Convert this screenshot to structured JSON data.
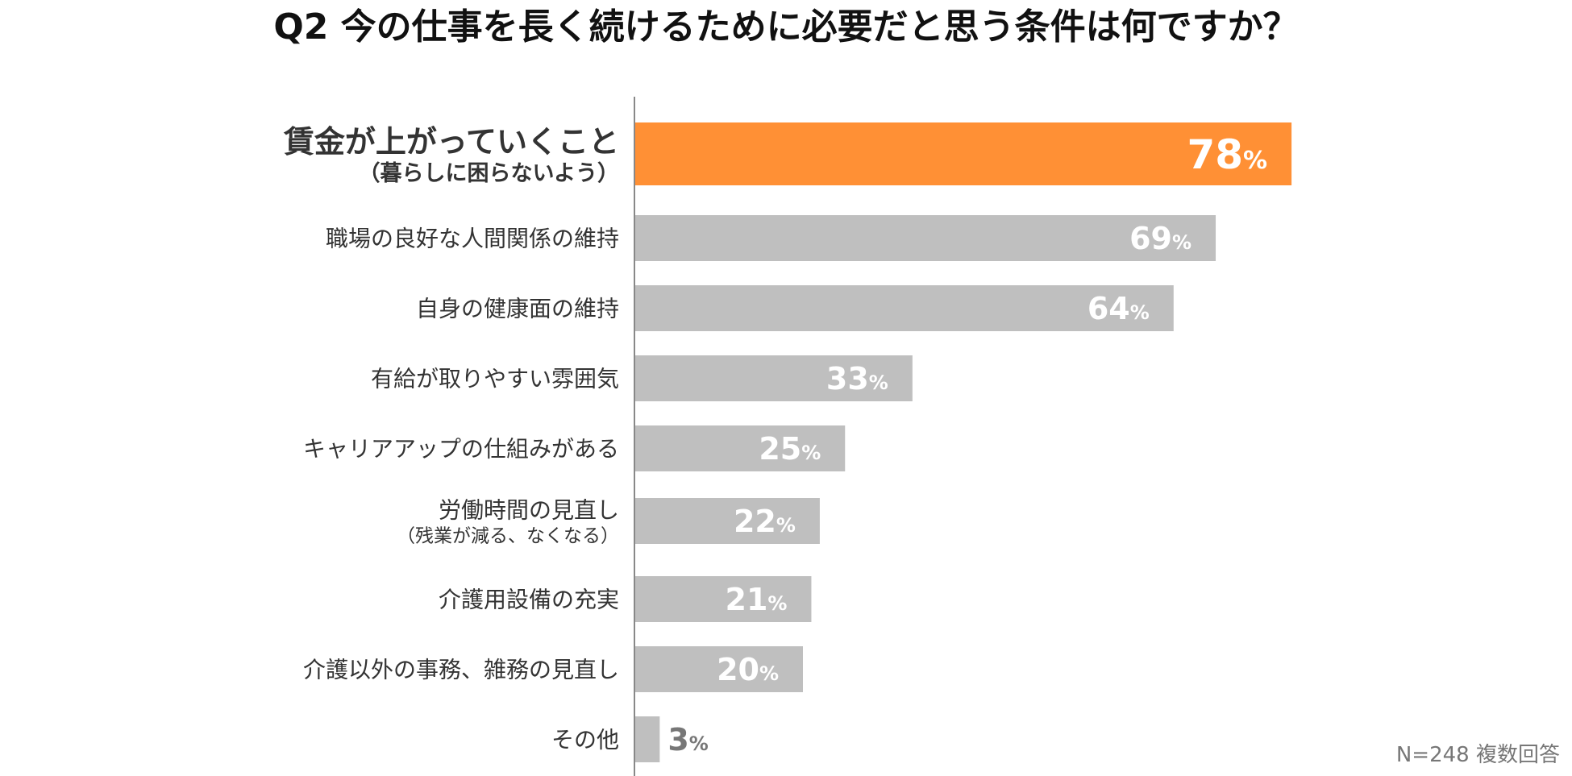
{
  "chart_data": {
    "type": "bar",
    "orientation": "horizontal",
    "title": "Q2  今の仕事を長く続けるために必要だと思う条件は何ですか？",
    "categories": [
      {
        "label": "賃金が上がっていくこと",
        "sub": "（暮らしに困らないよう）"
      },
      {
        "label": "職場の良好な人間関係の維持",
        "sub": null
      },
      {
        "label": "自身の健康面の維持",
        "sub": null
      },
      {
        "label": "有給が取りやすい雰囲気",
        "sub": null
      },
      {
        "label": "キャリアアップの仕組みがある",
        "sub": null
      },
      {
        "label": "労働時間の見直し",
        "sub": "（残業が減る、なくなる）"
      },
      {
        "label": "介護用設備の充実",
        "sub": null
      },
      {
        "label": "介護以外の事務、雑務の見直し",
        "sub": null
      },
      {
        "label": "その他",
        "sub": null
      }
    ],
    "values": [
      78,
      69,
      64,
      33,
      25,
      22,
      21,
      20,
      3
    ],
    "value_suffix": "%",
    "highlight_index": 0,
    "xlim": [
      0,
      100
    ],
    "colors": {
      "highlight": "#FF9035",
      "default": "#BFBFBF",
      "axis": "#888888",
      "value_inside": "#FFFFFF",
      "value_outside": "#777777",
      "label_default": "#333333",
      "label_highlight": "#F39035"
    },
    "note": "N=248  複数回答"
  }
}
